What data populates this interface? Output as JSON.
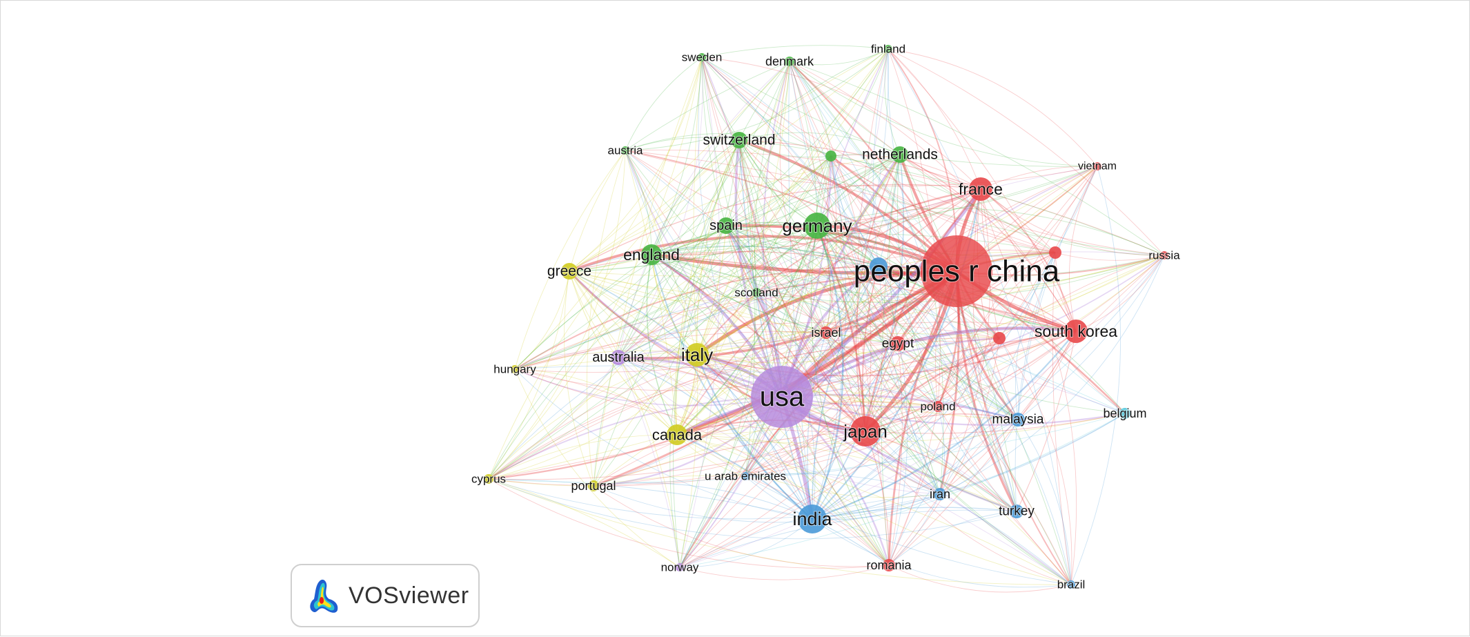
{
  "logo": {
    "text": "VOSviewer"
  },
  "colors": {
    "red": "#e8484a",
    "green": "#46b440",
    "blue": "#4a9ad8",
    "yellow": "#d0cc20",
    "purple": "#b487dc",
    "cyan": "#55c8dc"
  },
  "nodes": [
    {
      "id": "china",
      "label": "peoples r china",
      "cluster": "red",
      "weight": 100
    },
    {
      "id": "usa",
      "label": "usa",
      "cluster": "purple",
      "weight": 60
    },
    {
      "id": "india",
      "label": "india",
      "cluster": "blue",
      "weight": 22
    },
    {
      "id": "japan",
      "label": "japan",
      "cluster": "red",
      "weight": 18
    },
    {
      "id": "germany",
      "label": "germany",
      "cluster": "green",
      "weight": 16
    },
    {
      "id": "south-korea",
      "label": "south korea",
      "cluster": "red",
      "weight": 14
    },
    {
      "id": "france",
      "label": "france",
      "cluster": "red",
      "weight": 13
    },
    {
      "id": "italy",
      "label": "italy",
      "cluster": "yellow",
      "weight": 13
    },
    {
      "id": "england",
      "label": "england",
      "cluster": "green",
      "weight": 12
    },
    {
      "id": "canada",
      "label": "canada",
      "cluster": "yellow",
      "weight": 11
    },
    {
      "id": "greece",
      "label": "greece",
      "cluster": "yellow",
      "weight": 9
    },
    {
      "id": "switzerland",
      "label": "switzerland",
      "cluster": "green",
      "weight": 9
    },
    {
      "id": "netherlands",
      "label": "netherlands",
      "cluster": "green",
      "weight": 9
    },
    {
      "id": "spain",
      "label": "spain",
      "cluster": "green",
      "weight": 8
    },
    {
      "id": "australia",
      "label": "australia",
      "cluster": "purple",
      "weight": 8
    },
    {
      "id": "malaysia",
      "label": "malaysia",
      "cluster": "blue",
      "weight": 7
    },
    {
      "id": "turkey",
      "label": "turkey",
      "cluster": "blue",
      "weight": 7
    },
    {
      "id": "egypt",
      "label": "egypt",
      "cluster": "red",
      "weight": 7
    },
    {
      "id": "israel",
      "label": "israel",
      "cluster": "red",
      "weight": 6
    },
    {
      "id": "iran",
      "label": "iran",
      "cluster": "blue",
      "weight": 5
    },
    {
      "id": "romania",
      "label": "romania",
      "cluster": "red",
      "weight": 5
    },
    {
      "id": "belgium",
      "label": "belgium",
      "cluster": "cyan",
      "weight": 5
    },
    {
      "id": "poland",
      "label": "poland",
      "cluster": "red",
      "weight": 4
    },
    {
      "id": "portugal",
      "label": "portugal",
      "cluster": "yellow",
      "weight": 4
    },
    {
      "id": "cyprus",
      "label": "cyprus",
      "cluster": "yellow",
      "weight": 3
    },
    {
      "id": "hungary",
      "label": "hungary",
      "cluster": "yellow",
      "weight": 3
    },
    {
      "id": "scotland",
      "label": "scotland",
      "cluster": "green",
      "weight": 3
    },
    {
      "id": "u-arab-emirates",
      "label": "u arab emirates",
      "cluster": "blue",
      "weight": 3
    },
    {
      "id": "norway",
      "label": "norway",
      "cluster": "purple",
      "weight": 3
    },
    {
      "id": "brazil",
      "label": "brazil",
      "cluster": "blue",
      "weight": 3
    },
    {
      "id": "vietnam",
      "label": "vietnam",
      "cluster": "red",
      "weight": 3
    },
    {
      "id": "russia",
      "label": "russia",
      "cluster": "red",
      "weight": 3
    },
    {
      "id": "austria",
      "label": "austria",
      "cluster": "green",
      "weight": 3
    },
    {
      "id": "sweden",
      "label": "sweden",
      "cluster": "green",
      "weight": 3
    },
    {
      "id": "denmark",
      "label": "denmark",
      "cluster": "green",
      "weight": 3
    },
    {
      "id": "finland",
      "label": "finland",
      "cluster": "green",
      "weight": 3
    },
    {
      "id": "unlabeled-green",
      "label": "",
      "cluster": "green",
      "weight": 4
    },
    {
      "id": "unlabeled-red-1",
      "label": "",
      "cluster": "red",
      "weight": 4
    },
    {
      "id": "unlabeled-red-2",
      "label": "",
      "cluster": "red",
      "weight": 4
    },
    {
      "id": "unlabeled-blue",
      "label": "",
      "cluster": "blue",
      "weight": 6
    }
  ]
}
